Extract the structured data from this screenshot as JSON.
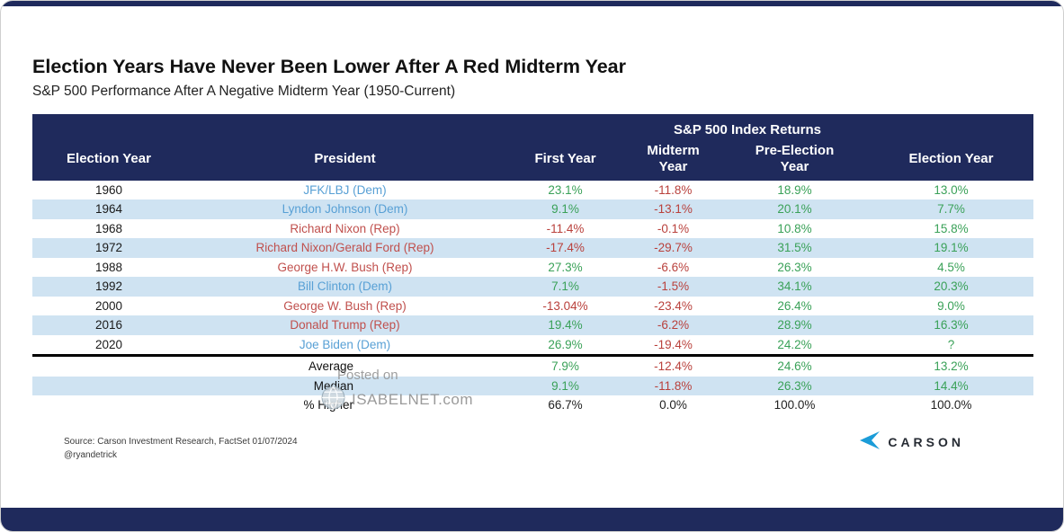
{
  "title": "Election Years Have Never Been Lower After A Red Midterm Year",
  "subtitle": "S&P 500 Performance After A Negative Midterm Year (1950-Current)",
  "watermark": {
    "line1": "Posted on",
    "line2": "ISABELNET.com"
  },
  "source": "Source: Carson Investment Research, FactSet 01/07/2024",
  "handle": "@ryandetrick",
  "logo": {
    "text": "CARSON"
  },
  "colors": {
    "navy": "#1f2a5c",
    "row_alt": "#cfe3f2",
    "positive": "#3aa158",
    "negative": "#b9413c",
    "dem": "#58a0d5",
    "rep": "#c0504d",
    "carson_blue": "#1b9cd8"
  },
  "chart_data": {
    "type": "table",
    "title": "Election Years Have Never Been Lower After A Red Midterm Year",
    "subtitle": "S&P 500 Performance After A Negative Midterm Year (1950-Current)",
    "group_header": "S&P 500 Index Returns",
    "columns": [
      "Election Year",
      "President",
      "First Year",
      "Midterm Year",
      "Pre-Election Year",
      "Election Year"
    ],
    "rows": [
      {
        "year": "1960",
        "president": "JFK/LBJ (Dem)",
        "first": "23.1%",
        "midterm": "-11.8%",
        "pre": "18.9%",
        "election": "13.0%"
      },
      {
        "year": "1964",
        "president": "Lyndon Johnson (Dem)",
        "first": "9.1%",
        "midterm": "-13.1%",
        "pre": "20.1%",
        "election": "7.7%"
      },
      {
        "year": "1968",
        "president": "Richard Nixon (Rep)",
        "first": "-11.4%",
        "midterm": "-0.1%",
        "pre": "10.8%",
        "election": "15.8%"
      },
      {
        "year": "1972",
        "president": "Richard Nixon/Gerald Ford (Rep)",
        "first": "-17.4%",
        "midterm": "-29.7%",
        "pre": "31.5%",
        "election": "19.1%"
      },
      {
        "year": "1988",
        "president": "George H.W. Bush (Rep)",
        "first": "27.3%",
        "midterm": "-6.6%",
        "pre": "26.3%",
        "election": "4.5%"
      },
      {
        "year": "1992",
        "president": "Bill Clinton (Dem)",
        "first": "7.1%",
        "midterm": "-1.5%",
        "pre": "34.1%",
        "election": "20.3%"
      },
      {
        "year": "2000",
        "president": "George W. Bush (Rep)",
        "first": "-13.04%",
        "midterm": "-23.4%",
        "pre": "26.4%",
        "election": "9.0%"
      },
      {
        "year": "2016",
        "president": "Donald Trump (Rep)",
        "first": "19.4%",
        "midterm": "-6.2%",
        "pre": "28.9%",
        "election": "16.3%"
      },
      {
        "year": "2020",
        "president": "Joe Biden (Dem)",
        "first": "26.9%",
        "midterm": "-19.4%",
        "pre": "24.2%",
        "election": "?"
      }
    ],
    "summary": [
      {
        "label": "Average",
        "first": "7.9%",
        "midterm": "-12.4%",
        "pre": "24.6%",
        "election": "13.2%"
      },
      {
        "label": "Median",
        "first": "9.1%",
        "midterm": "-11.8%",
        "pre": "26.3%",
        "election": "14.4%"
      },
      {
        "label": "% Higher",
        "first": "66.7%",
        "midterm": "0.0%",
        "pre": "100.0%",
        "election": "100.0%"
      }
    ]
  }
}
